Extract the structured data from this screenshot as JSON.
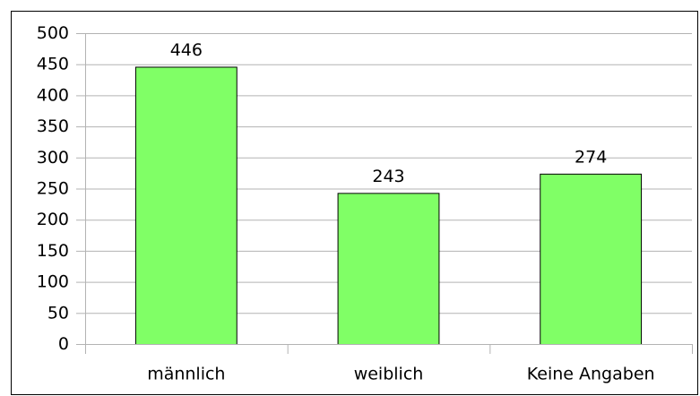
{
  "chart_data": {
    "type": "bar",
    "categories": [
      "männlich",
      "weiblich",
      "Keine Angaben"
    ],
    "values": [
      446,
      243,
      274
    ],
    "color": "#80ff66",
    "ylim": [
      0,
      500
    ],
    "yticks": [
      0,
      50,
      100,
      150,
      200,
      250,
      300,
      350,
      400,
      450,
      500
    ],
    "grid": true
  }
}
